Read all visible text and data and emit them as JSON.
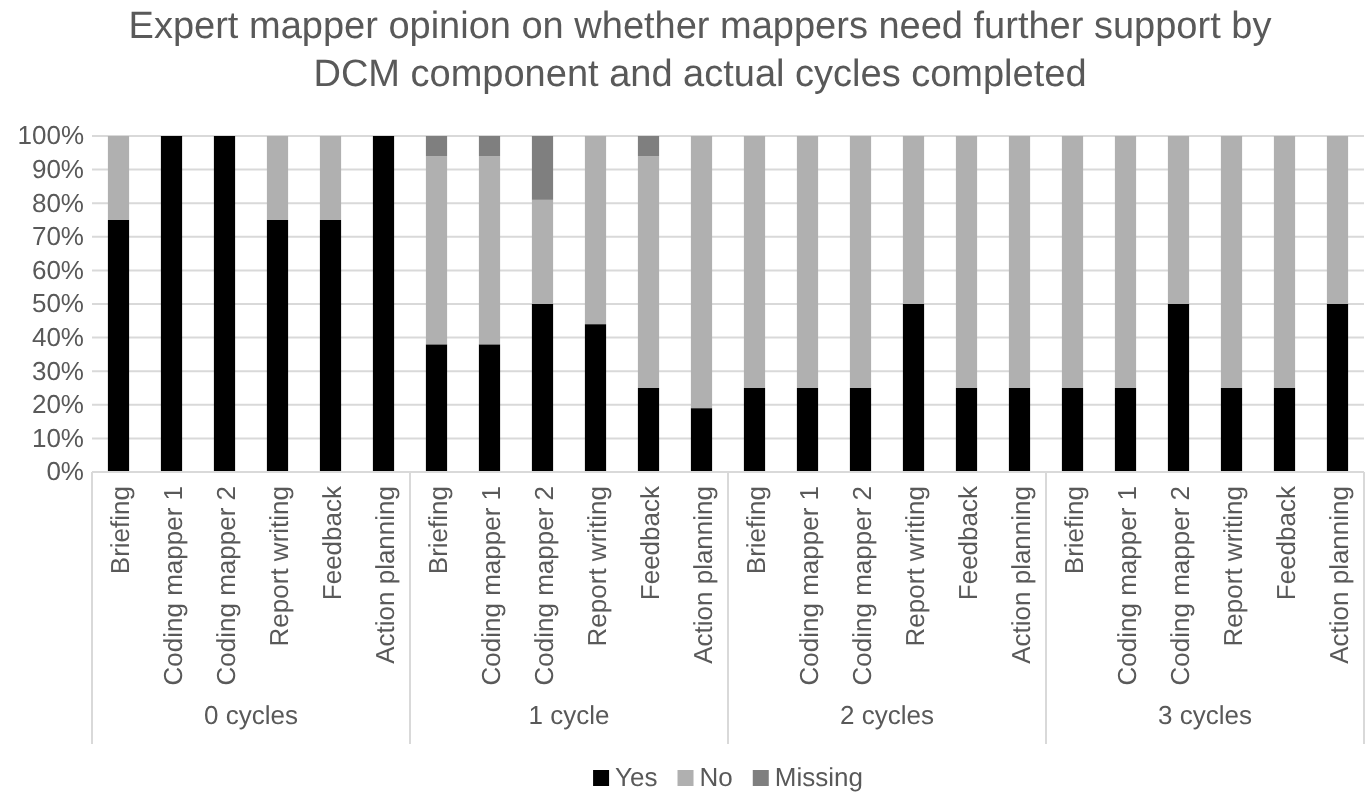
{
  "chart_data": {
    "type": "bar",
    "title": "Expert mapper opinion on whether mappers need further support by DCM component and actual cycles completed",
    "categories": [
      "Briefing",
      "Coding mapper 1",
      "Coding mapper 2",
      "Report writing",
      "Feedback",
      "Action planning",
      "Briefing",
      "Coding mapper 1",
      "Coding mapper 2",
      "Report writing",
      "Feedback",
      "Action planning",
      "Briefing",
      "Coding mapper 1",
      "Coding mapper 2",
      "Report writing",
      "Feedback",
      "Action planning",
      "Briefing",
      "Coding mapper 1",
      "Coding mapper 2",
      "Report writing",
      "Feedback",
      "Action planning"
    ],
    "series": [
      {
        "name": "Yes",
        "color": "#000000",
        "values": [
          75,
          100,
          100,
          75,
          75,
          100,
          38,
          38,
          50,
          44,
          25,
          19,
          25,
          25,
          25,
          50,
          25,
          25,
          25,
          25,
          50,
          25,
          25,
          50
        ]
      },
      {
        "name": "No",
        "color": "#b0b0b0",
        "values": [
          25,
          0,
          0,
          25,
          25,
          0,
          56,
          56,
          31,
          56,
          69,
          81,
          75,
          75,
          75,
          50,
          75,
          75,
          75,
          75,
          50,
          75,
          75,
          50
        ]
      },
      {
        "name": "Missing",
        "color": "#7f7f7f",
        "values": [
          0,
          0,
          0,
          0,
          0,
          0,
          6,
          6,
          19,
          0,
          6,
          0,
          0,
          0,
          0,
          0,
          0,
          0,
          0,
          0,
          0,
          0,
          0,
          0
        ]
      }
    ],
    "stacked": true,
    "ylim": [
      0,
      100
    ],
    "yticks": [
      {
        "value": 0,
        "label": "0%"
      },
      {
        "value": 10,
        "label": "10%"
      },
      {
        "value": 20,
        "label": "20%"
      },
      {
        "value": 30,
        "label": "30%"
      },
      {
        "value": 40,
        "label": "40%"
      },
      {
        "value": 50,
        "label": "50%"
      },
      {
        "value": 60,
        "label": "60%"
      },
      {
        "value": 70,
        "label": "70%"
      },
      {
        "value": 80,
        "label": "80%"
      },
      {
        "value": 90,
        "label": "90%"
      },
      {
        "value": 100,
        "label": "100%"
      }
    ],
    "grid": "y",
    "legend": "bottom",
    "annotations": [
      "0 cycles",
      "1 cycle",
      "2 cycles",
      "3 cycles"
    ]
  }
}
